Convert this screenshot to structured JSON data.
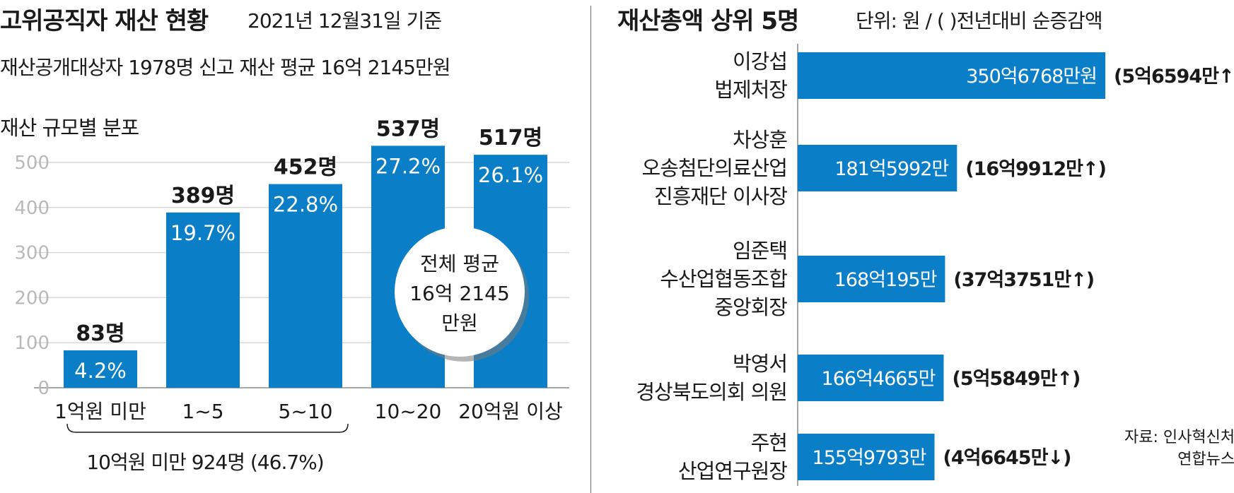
{
  "header": {
    "title": "고위공직자 재산 현황",
    "subtitle": "2021년 12월31일 기준",
    "summary": "재산공개대상자 1978명 신고 재산 평균 16억 2145만원",
    "distribution_label": "재산 규모별 분포"
  },
  "right_header": {
    "title": "재산총액 상위 5명",
    "unit": "단위: 원 / ( )전년대비 순증감액"
  },
  "source": {
    "line1": "자료: 인사혁신처",
    "line2": "연합뉴스"
  },
  "colors": {
    "bar": "#0a7fc8",
    "grid": "#d9d9d9",
    "text": "#1a1a1a"
  },
  "chart_data": [
    {
      "type": "bar",
      "title": "재산 규모별 분포",
      "categories": [
        "1억원 미만",
        "1~5",
        "5~10",
        "10~20",
        "20억원 이상"
      ],
      "values": [
        83,
        389,
        452,
        537,
        517
      ],
      "value_labels": [
        "83명",
        "389명",
        "452명",
        "537명",
        "517명"
      ],
      "percent_labels": [
        "4.2%",
        "19.7%",
        "22.8%",
        "27.2%",
        "26.1%"
      ],
      "ylim": [
        0,
        500
      ],
      "yticks": [
        "0",
        "100",
        "200",
        "300",
        "400",
        "500"
      ],
      "grid": true,
      "annotations": {
        "average_bubble": [
          "전체 평균",
          "16억 2145",
          "만원"
        ],
        "bracket": "10억원 미만 924명 (46.7%)"
      }
    },
    {
      "type": "bar",
      "orientation": "horizontal",
      "title": "재산총액 상위 5명",
      "names": [
        [
          "이강섭",
          "법제처장"
        ],
        [
          "차상훈",
          "오송첨단의료산업",
          "진흥재단 이사장"
        ],
        [
          "임준택",
          "수산업협동조합",
          "중앙회장"
        ],
        [
          "박영서",
          "경상북도의회 의원"
        ],
        [
          "주현",
          "산업연구원장"
        ]
      ],
      "values": [
        35067.68,
        18159.92,
        16801.95,
        16644.65,
        15597.93
      ],
      "value_labels": [
        "350억6768만원",
        "181억5992만",
        "168억195만",
        "166억4665만",
        "155억9793만"
      ],
      "change_labels": [
        "(5억6594만↑)",
        "(16억9912만↑)",
        "(37억3751만↑)",
        "(5억5849만↑)",
        "(4억6645만↓)"
      ]
    }
  ]
}
